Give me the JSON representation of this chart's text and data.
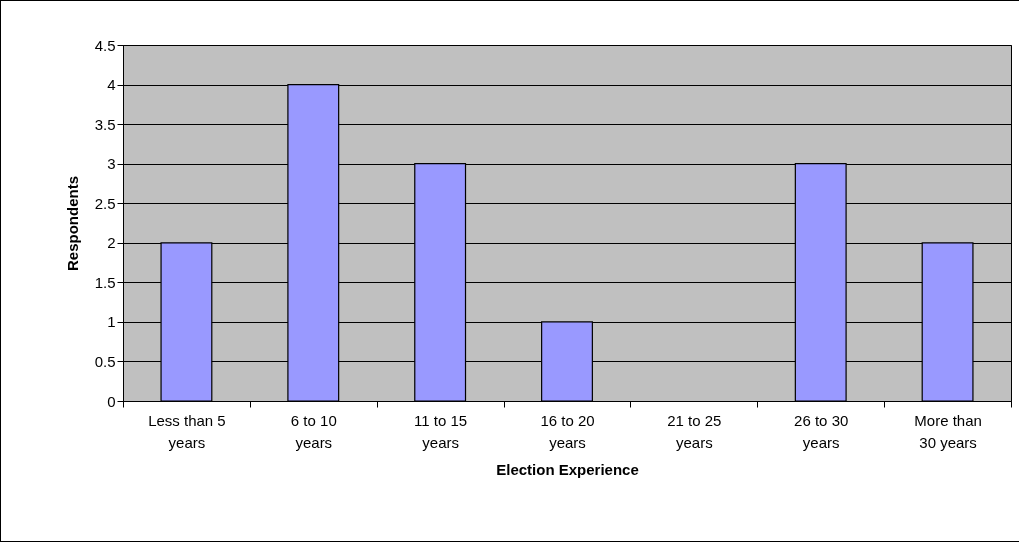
{
  "chart_data": {
    "type": "bar",
    "xlabel": "Election Experience",
    "ylabel": "Respondents",
    "categories": [
      "Less than 5 years",
      "6 to 10 years",
      "11 to 15 years",
      "16 to 20 years",
      "21 to 25 years",
      "26 to 30 years",
      "More than 30 years"
    ],
    "values": [
      2,
      4,
      3,
      1,
      0,
      3,
      2
    ],
    "color": "#9999ff",
    "ylim": [
      0,
      4.5
    ],
    "yticks": [
      0,
      0.5,
      1,
      1.5,
      2,
      2.5,
      3,
      3.5,
      4,
      4.5
    ],
    "grid": "y"
  }
}
